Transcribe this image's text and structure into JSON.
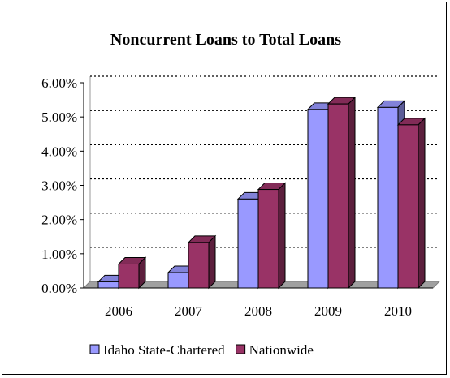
{
  "chart_data": {
    "type": "bar",
    "title": "Noncurrent Loans to Total Loans",
    "xlabel": "",
    "ylabel": "",
    "categories": [
      "2006",
      "2007",
      "2008",
      "2009",
      "2010"
    ],
    "y_ticks": [
      "0.00%",
      "1.00%",
      "2.00%",
      "3.00%",
      "4.00%",
      "5.00%",
      "6.00%"
    ],
    "ylim": [
      0,
      6
    ],
    "grid": true,
    "legend_position": "bottom",
    "series": [
      {
        "name": "Idaho State-Chartered",
        "color": "#9999ff",
        "values": [
          0.18,
          0.45,
          2.6,
          5.22,
          5.28
        ]
      },
      {
        "name": "Nationwide",
        "color": "#993366",
        "values": [
          0.7,
          1.33,
          2.88,
          5.38,
          4.77
        ]
      }
    ]
  }
}
